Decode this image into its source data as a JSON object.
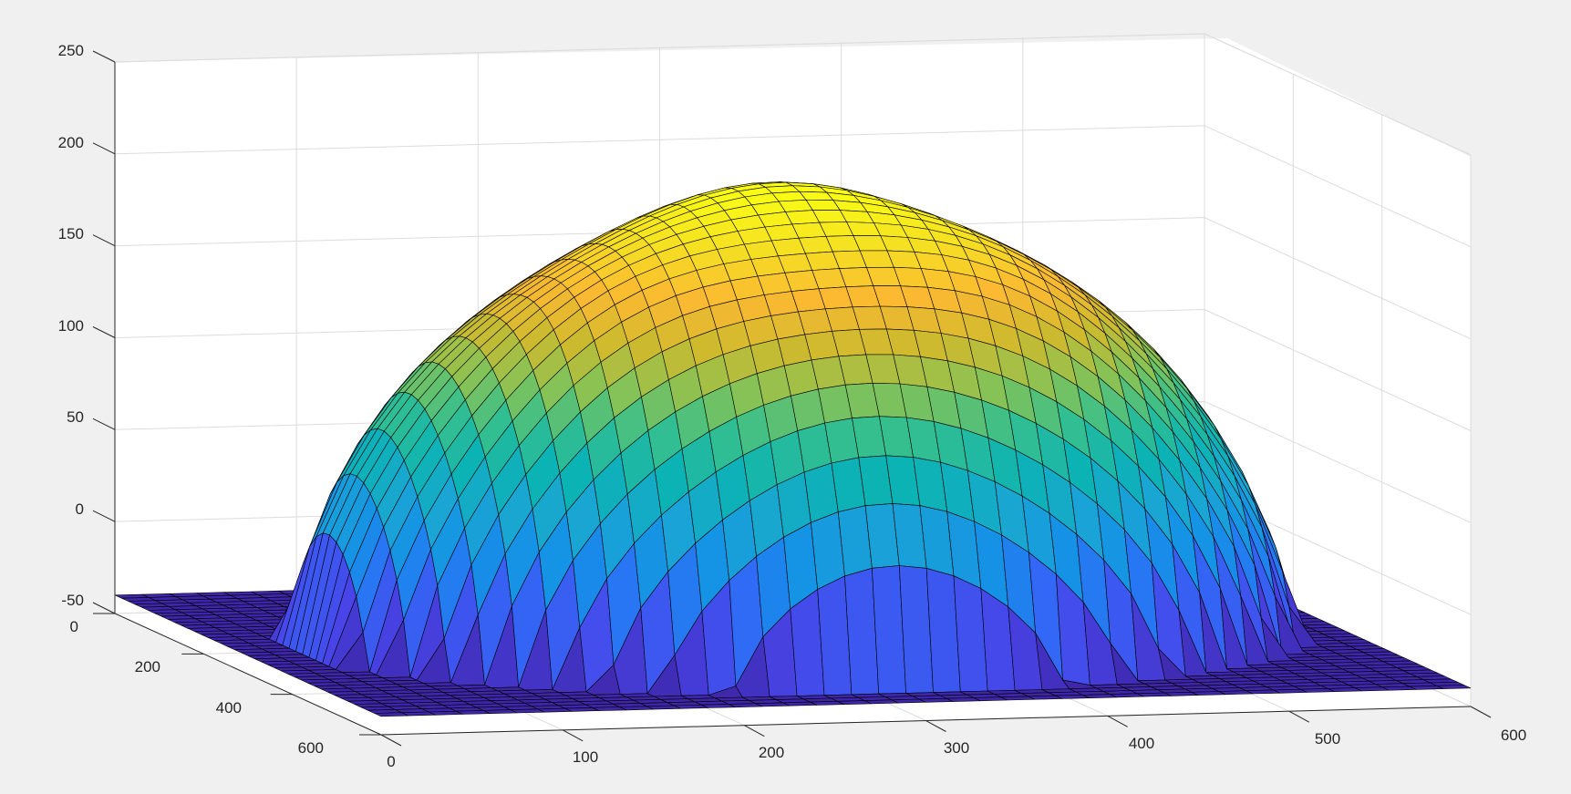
{
  "chart_data": {
    "type": "surface",
    "title": "",
    "xlabel": "",
    "ylabel": "",
    "zlabel": "",
    "grid": true,
    "colormap": "parula",
    "colormap_colors": [
      "#3e26a8",
      "#4845e9",
      "#2d6ff8",
      "#1591e6",
      "#1aa6d3",
      "#0cb3b4",
      "#35bf8e",
      "#8bc253",
      "#cfba2e",
      "#fbb932",
      "#f5df23",
      "#f9fb15"
    ],
    "background_color": "#f0f0f0",
    "axes_color": "#ffffff",
    "edge_color": "#000000",
    "xlim": [
      0,
      600
    ],
    "ylim": [
      0,
      600
    ],
    "zlim": [
      -50,
      250
    ],
    "x_ticks": [
      "0",
      "100",
      "200",
      "300",
      "400",
      "500",
      "600"
    ],
    "y_ticks": [
      "0",
      "200",
      "400",
      "600"
    ],
    "z_ticks": [
      "250",
      "200",
      "150",
      "100",
      "50",
      "0",
      "-50"
    ],
    "surface": {
      "x_range": [
        0,
        600
      ],
      "y_range": [
        0,
        600
      ],
      "grid_points": 41,
      "peak_z": 205,
      "peak_x": 300,
      "peak_y": 300,
      "baseline_z": -40,
      "description_profile": "dome"
    }
  }
}
